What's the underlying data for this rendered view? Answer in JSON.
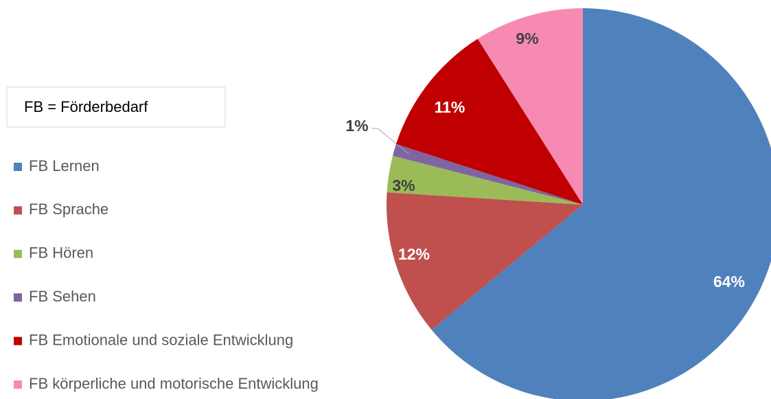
{
  "chart_data": {
    "type": "pie",
    "annotation": "FB = Förderbedarf",
    "categories": [
      "FB Lernen",
      "FB Sprache",
      "FB Hören",
      "FB Sehen",
      "FB Emotionale und soziale Entwicklung",
      "FB körperliche und motorische Entwicklung"
    ],
    "values": [
      64,
      12,
      3,
      1,
      11,
      9
    ],
    "value_labels": [
      "64%",
      "12%",
      "3%",
      "1%",
      "11%",
      "9%"
    ],
    "colors": [
      "#4f81bd",
      "#c0504d",
      "#9bbb59",
      "#8064a2",
      "#c00000",
      "#f78ab3"
    ],
    "legend": "left"
  }
}
